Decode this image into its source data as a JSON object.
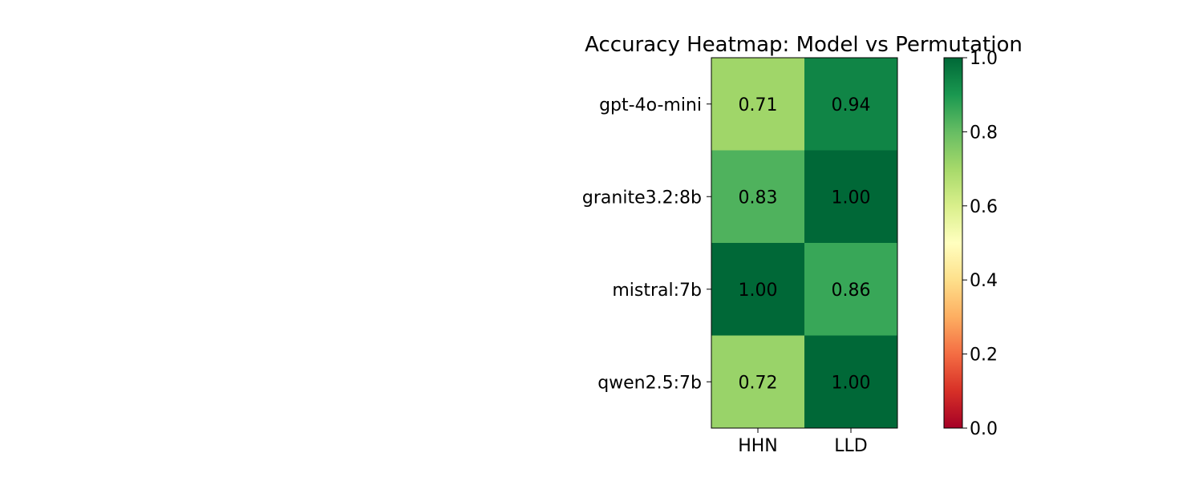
{
  "chart_data": {
    "type": "heatmap",
    "title": "Accuracy Heatmap: Model vs Permutation",
    "xlabel": "",
    "ylabel": "",
    "x_categories": [
      "HHN",
      "LLD"
    ],
    "y_categories": [
      "gpt-4o-mini",
      "granite3.2:8b",
      "mistral:7b",
      "qwen2.5:7b"
    ],
    "values": [
      [
        0.71,
        0.94
      ],
      [
        0.83,
        1.0
      ],
      [
        1.0,
        0.86
      ],
      [
        0.72,
        1.0
      ]
    ],
    "value_format": "2-decimals",
    "colormap": "RdYlGn",
    "colormap_stops": [
      "#a50026",
      "#d73027",
      "#f46d43",
      "#fdae61",
      "#fee08b",
      "#ffffbf",
      "#d9ef8b",
      "#a6d96a",
      "#66bd63",
      "#1a9850",
      "#006837"
    ],
    "colorbar": {
      "range": [
        0,
        1
      ],
      "ticks": [
        "0.0",
        "0.2",
        "0.4",
        "0.6",
        "0.8",
        "1.0"
      ],
      "tick_values": [
        0,
        0.2,
        0.4,
        0.6,
        0.8,
        1.0
      ]
    },
    "grid": false,
    "legend": "colorbar-right"
  }
}
